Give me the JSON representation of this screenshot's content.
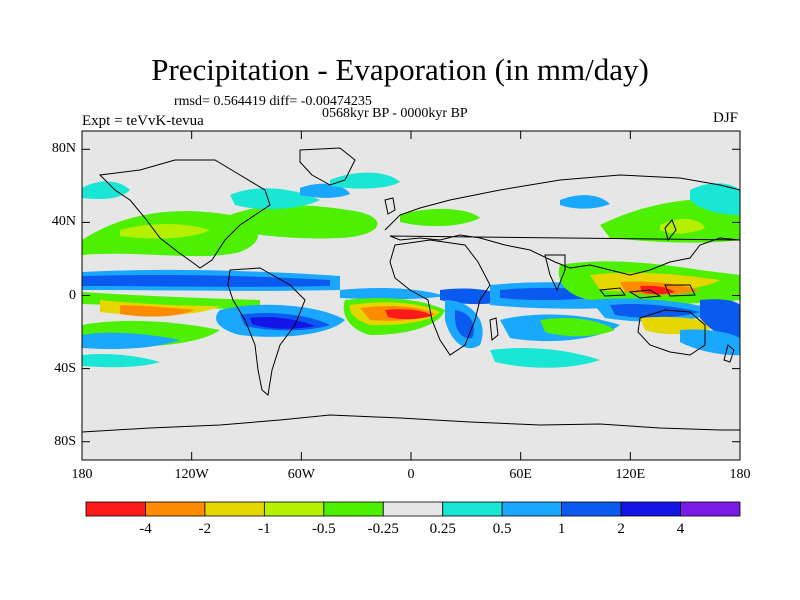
{
  "title": "Precipitation - Evaporation (in mm/day)",
  "stats_text": "rmsd= 0.564419 diff= -0.00474235",
  "period_text": "0568kyr BP - 0000kyr BP",
  "expt_text": "Expt = teVvK-tevua",
  "season_text": "DJF",
  "lat_axis": {
    "ticks": [
      {
        "value": 80,
        "label": "80N"
      },
      {
        "value": 40,
        "label": "40N"
      },
      {
        "value": 0,
        "label": "0"
      },
      {
        "value": -40,
        "label": "40S"
      },
      {
        "value": -80,
        "label": "80S"
      }
    ],
    "range": [
      -90,
      90
    ]
  },
  "lon_axis": {
    "ticks": [
      {
        "value": -180,
        "label": "180"
      },
      {
        "value": -120,
        "label": "120W"
      },
      {
        "value": -60,
        "label": "60W"
      },
      {
        "value": 0,
        "label": "0"
      },
      {
        "value": 60,
        "label": "60E"
      },
      {
        "value": 120,
        "label": "120E"
      },
      {
        "value": 180,
        "label": "180"
      }
    ],
    "range": [
      -180,
      180
    ]
  },
  "colorbar": {
    "colors": [
      "#ff1a1a",
      "#ff8c00",
      "#e6d600",
      "#b4f000",
      "#4cf000",
      "#e6e6e6",
      "#1ae6d6",
      "#1aa8ff",
      "#0a5af0",
      "#1414e6",
      "#7a1ae6"
    ],
    "labels": [
      "-4",
      "-2",
      "-1",
      "-0.5",
      "-0.25",
      "0.25",
      "0.5",
      "1",
      "2",
      "4"
    ]
  },
  "field_levels": [
    {
      "level": -4,
      "color": "#ff1a1a"
    },
    {
      "level": -2,
      "color": "#ff8c00"
    },
    {
      "level": -1,
      "color": "#e6d600"
    },
    {
      "level": -0.5,
      "color": "#b4f000"
    },
    {
      "level": -0.25,
      "color": "#4cf000"
    },
    {
      "level": 0.25,
      "color": "#1ae6d6"
    },
    {
      "level": 0.5,
      "color": "#1aa8ff"
    },
    {
      "level": 1,
      "color": "#0a5af0"
    },
    {
      "level": 2,
      "color": "#1414e6"
    },
    {
      "level": 4,
      "color": "#7a1ae6"
    }
  ],
  "background_color": "#e6e6e6"
}
